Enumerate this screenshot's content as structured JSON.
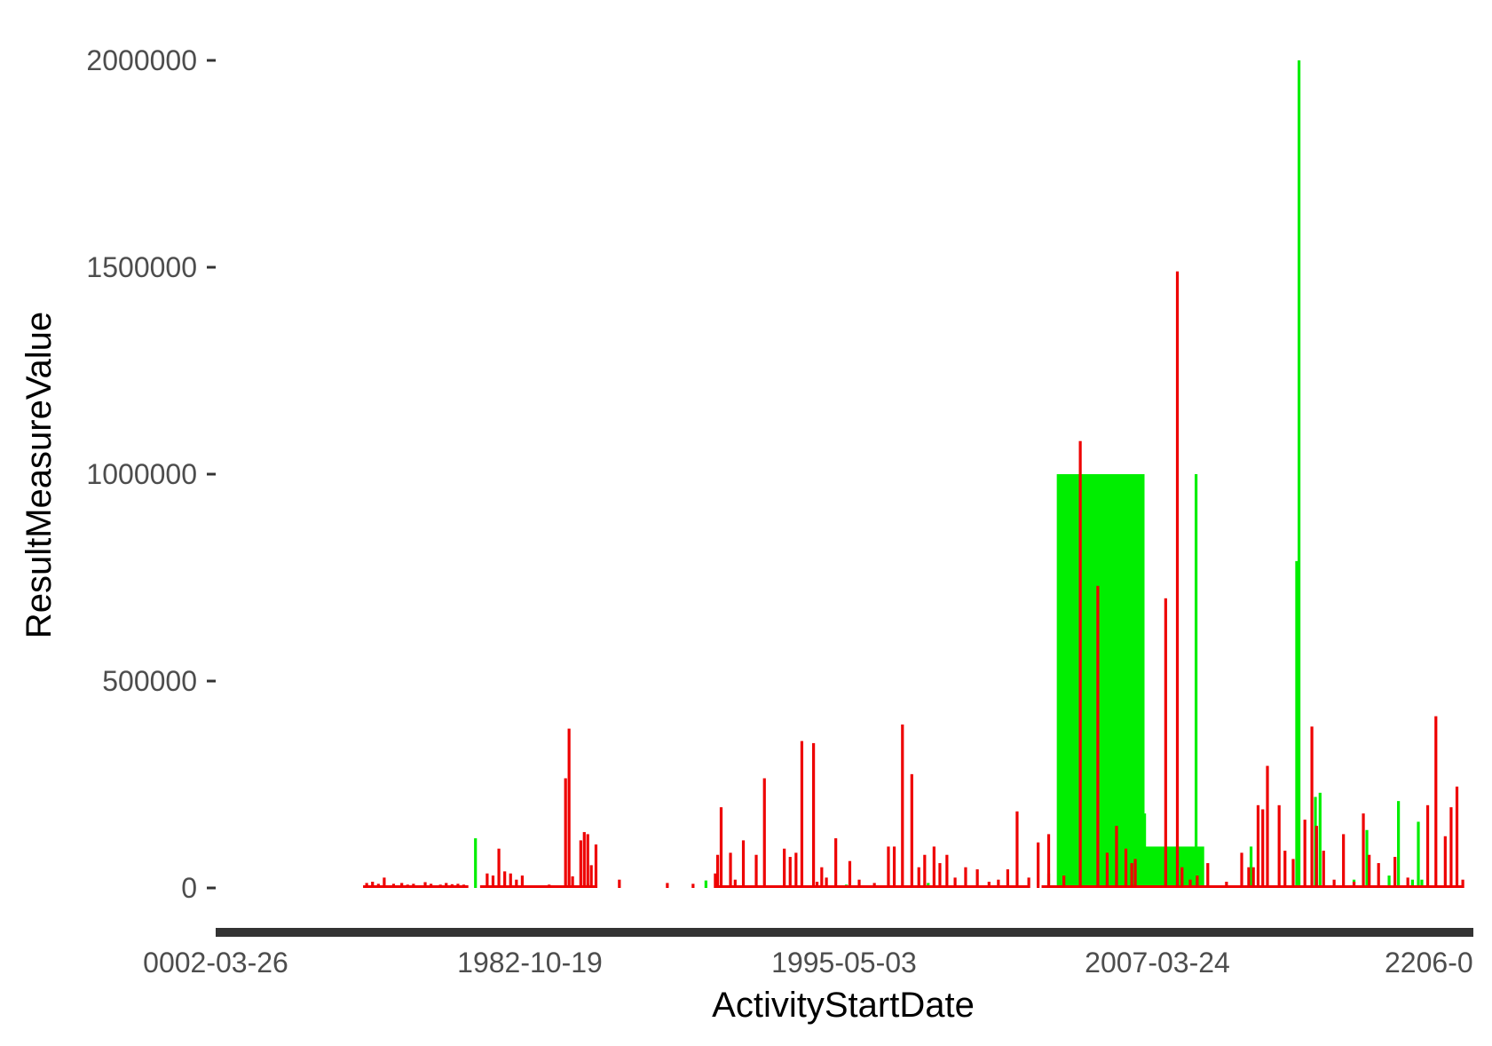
{
  "chart_data": {
    "type": "bar",
    "title": "",
    "xlabel": "ActivityStartDate",
    "ylabel": "ResultMeasureValue",
    "ylim": [
      -110000,
      2080000
    ],
    "grid": false,
    "legend": "none",
    "x_tick_labels": [
      "0002-03-26",
      "1982-10-19",
      "1995-05-03",
      "2007-03-24",
      "2206-0"
    ],
    "y_ticks": [
      0,
      500000,
      1000000,
      1500000,
      2000000
    ],
    "y_tick_labels": [
      "0",
      "500000",
      "1000000",
      "1500000",
      "2000000"
    ],
    "colors": {
      "series_a": "#00ee00",
      "series_b": "#ee0000",
      "axis": "#333333"
    },
    "categories_note": "",
    "green_blocks": [
      {
        "x_start": 0.653,
        "x_end": 0.728,
        "value": 1000000
      },
      {
        "x_start": 0.725,
        "x_end": 0.779,
        "value": 100000
      }
    ],
    "series": [
      {
        "name": "",
        "color": "#00ee00",
        "x": [
          0.156,
          0.252,
          0.353,
          0.365,
          0.473,
          0.543,
          0.646,
          0.728,
          0.772,
          0.774,
          0.819,
          0.858,
          0.86,
          0.874,
          0.878,
          0.907,
          0.918,
          0.937,
          0.945,
          0.957,
          0.962,
          0.965
        ],
        "values": [
          120000,
          10000,
          18000,
          5000,
          8000,
          12000,
          35000,
          180000,
          1000000,
          20000,
          100000,
          790000,
          2000000,
          220000,
          230000,
          20000,
          140000,
          30000,
          210000,
          20000,
          160000,
          20000
        ]
      },
      {
        "name": "",
        "color": "#ee0000",
        "x": [
          0.063,
          0.068,
          0.073,
          0.078,
          0.086,
          0.093,
          0.098,
          0.103,
          0.113,
          0.118,
          0.126,
          0.131,
          0.136,
          0.141,
          0.146,
          0.166,
          0.171,
          0.176,
          0.181,
          0.186,
          0.191,
          0.196,
          0.219,
          0.233,
          0.236,
          0.239,
          0.246,
          0.249,
          0.252,
          0.255,
          0.259,
          0.279,
          0.32,
          0.342,
          0.361,
          0.363,
          0.366,
          0.374,
          0.378,
          0.385,
          0.396,
          0.403,
          0.42,
          0.425,
          0.43,
          0.435,
          0.445,
          0.448,
          0.452,
          0.456,
          0.464,
          0.476,
          0.484,
          0.497,
          0.509,
          0.514,
          0.521,
          0.529,
          0.535,
          0.54,
          0.548,
          0.553,
          0.559,
          0.566,
          0.575,
          0.585,
          0.595,
          0.603,
          0.611,
          0.619,
          0.629,
          0.637,
          0.646,
          0.659,
          0.673,
          0.688,
          0.696,
          0.704,
          0.712,
          0.717,
          0.72,
          0.746,
          0.756,
          0.76,
          0.767,
          0.773,
          0.782,
          0.798,
          0.811,
          0.817,
          0.821,
          0.825,
          0.829,
          0.833,
          0.843,
          0.848,
          0.855,
          0.865,
          0.871,
          0.875,
          0.881,
          0.89,
          0.898,
          0.907,
          0.915,
          0.92,
          0.928,
          0.942,
          0.953,
          0.97,
          0.977,
          0.985,
          0.99,
          0.995,
          1.0
        ],
        "values": [
          12000,
          15000,
          10000,
          25000,
          10000,
          12000,
          8000,
          10000,
          14000,
          10000,
          8000,
          12000,
          9000,
          10000,
          8000,
          35000,
          30000,
          95000,
          40000,
          35000,
          20000,
          30000,
          8000,
          265000,
          385000,
          28000,
          115000,
          135000,
          130000,
          55000,
          105000,
          20000,
          12000,
          10000,
          35000,
          80000,
          195000,
          85000,
          20000,
          115000,
          80000,
          265000,
          95000,
          75000,
          85000,
          355000,
          350000,
          15000,
          50000,
          25000,
          120000,
          65000,
          20000,
          12000,
          100000,
          100000,
          395000,
          275000,
          50000,
          80000,
          100000,
          60000,
          80000,
          25000,
          50000,
          45000,
          15000,
          20000,
          45000,
          185000,
          25000,
          110000,
          130000,
          30000,
          1080000,
          730000,
          85000,
          150000,
          95000,
          60000,
          70000,
          700000,
          1490000,
          50000,
          20000,
          30000,
          60000,
          15000,
          85000,
          50000,
          50000,
          200000,
          190000,
          295000,
          200000,
          90000,
          70000,
          165000,
          390000,
          150000,
          90000,
          20000,
          130000,
          15000,
          180000,
          80000,
          60000,
          75000,
          25000,
          200000,
          415000,
          125000,
          195000,
          245000,
          20000
        ]
      }
    ]
  }
}
